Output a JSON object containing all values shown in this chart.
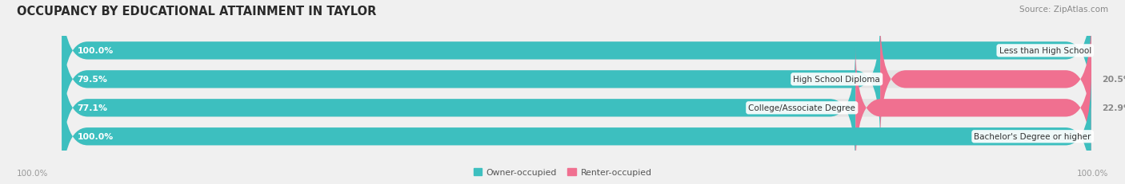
{
  "title": "OCCUPANCY BY EDUCATIONAL ATTAINMENT IN TAYLOR",
  "source": "Source: ZipAtlas.com",
  "categories": [
    "Less than High School",
    "High School Diploma",
    "College/Associate Degree",
    "Bachelor's Degree or higher"
  ],
  "owner_values": [
    100.0,
    79.5,
    77.1,
    100.0
  ],
  "renter_values": [
    0.0,
    20.5,
    22.9,
    0.0
  ],
  "owner_color": "#3DBFBF",
  "renter_color": "#F07090",
  "renter_color_light": "#F8B8C8",
  "bar_bg_color": "#E4E4E4",
  "owner_label": "Owner-occupied",
  "renter_label": "Renter-occupied",
  "bar_height": 0.62,
  "figsize": [
    14.06,
    2.32
  ],
  "dpi": 100,
  "title_fontsize": 10.5,
  "label_fontsize": 7.8,
  "tick_fontsize": 7.5,
  "source_fontsize": 7.5,
  "bg_color": "#F0F0F0"
}
